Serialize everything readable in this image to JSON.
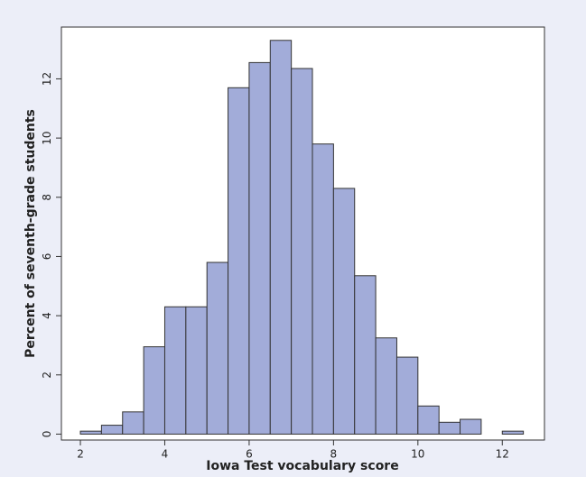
{
  "chart_data": {
    "type": "histogram",
    "xlabel": "Iowa Test vocabulary score",
    "ylabel": "Percent of seventh-grade students",
    "bins": [
      2,
      2.5,
      3,
      3.5,
      4,
      4.5,
      5,
      5.5,
      6,
      6.5,
      7,
      7.5,
      8,
      8.5,
      9,
      9.5,
      10,
      10.5,
      11,
      11.5,
      12,
      12.5
    ],
    "values": [
      0.1,
      0.3,
      0.75,
      2.95,
      4.3,
      4.3,
      5.8,
      11.7,
      12.55,
      13.3,
      12.35,
      9.8,
      8.3,
      5.35,
      3.25,
      2.6,
      0.95,
      0.4,
      0.5,
      0,
      0.1
    ],
    "color": "#a2acd9",
    "xlim": [
      1.55,
      13.0
    ],
    "ylim": [
      -0.2,
      13.75
    ],
    "xticks": [
      2,
      4,
      6,
      8,
      10,
      12
    ],
    "yticks": [
      0,
      2,
      4,
      6,
      8,
      10,
      12
    ]
  }
}
